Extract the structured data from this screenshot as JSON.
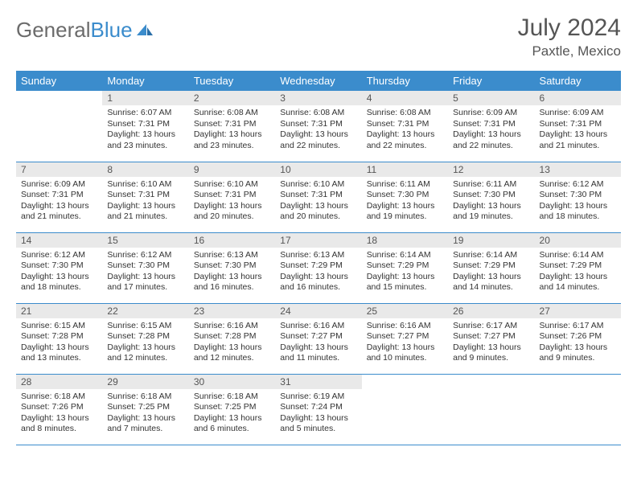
{
  "brand": {
    "part1": "General",
    "part2": "Blue"
  },
  "title": "July 2024",
  "location": "Paxtle, Mexico",
  "colors": {
    "header_bg": "#3b8ccc",
    "header_fg": "#ffffff",
    "daynum_bg": "#e9e9e9",
    "text": "#333333",
    "row_border": "#3b8ccc"
  },
  "fonts": {
    "title_size": 30,
    "location_size": 17,
    "dayhead_size": 13,
    "cell_size": 10.5
  },
  "day_labels": [
    "Sunday",
    "Monday",
    "Tuesday",
    "Wednesday",
    "Thursday",
    "Friday",
    "Saturday"
  ],
  "weeks": [
    [
      {
        "n": "",
        "sunrise": "",
        "sunset": "",
        "daylight": ""
      },
      {
        "n": "1",
        "sunrise": "Sunrise: 6:07 AM",
        "sunset": "Sunset: 7:31 PM",
        "daylight": "Daylight: 13 hours and 23 minutes."
      },
      {
        "n": "2",
        "sunrise": "Sunrise: 6:08 AM",
        "sunset": "Sunset: 7:31 PM",
        "daylight": "Daylight: 13 hours and 23 minutes."
      },
      {
        "n": "3",
        "sunrise": "Sunrise: 6:08 AM",
        "sunset": "Sunset: 7:31 PM",
        "daylight": "Daylight: 13 hours and 22 minutes."
      },
      {
        "n": "4",
        "sunrise": "Sunrise: 6:08 AM",
        "sunset": "Sunset: 7:31 PM",
        "daylight": "Daylight: 13 hours and 22 minutes."
      },
      {
        "n": "5",
        "sunrise": "Sunrise: 6:09 AM",
        "sunset": "Sunset: 7:31 PM",
        "daylight": "Daylight: 13 hours and 22 minutes."
      },
      {
        "n": "6",
        "sunrise": "Sunrise: 6:09 AM",
        "sunset": "Sunset: 7:31 PM",
        "daylight": "Daylight: 13 hours and 21 minutes."
      }
    ],
    [
      {
        "n": "7",
        "sunrise": "Sunrise: 6:09 AM",
        "sunset": "Sunset: 7:31 PM",
        "daylight": "Daylight: 13 hours and 21 minutes."
      },
      {
        "n": "8",
        "sunrise": "Sunrise: 6:10 AM",
        "sunset": "Sunset: 7:31 PM",
        "daylight": "Daylight: 13 hours and 21 minutes."
      },
      {
        "n": "9",
        "sunrise": "Sunrise: 6:10 AM",
        "sunset": "Sunset: 7:31 PM",
        "daylight": "Daylight: 13 hours and 20 minutes."
      },
      {
        "n": "10",
        "sunrise": "Sunrise: 6:10 AM",
        "sunset": "Sunset: 7:31 PM",
        "daylight": "Daylight: 13 hours and 20 minutes."
      },
      {
        "n": "11",
        "sunrise": "Sunrise: 6:11 AM",
        "sunset": "Sunset: 7:30 PM",
        "daylight": "Daylight: 13 hours and 19 minutes."
      },
      {
        "n": "12",
        "sunrise": "Sunrise: 6:11 AM",
        "sunset": "Sunset: 7:30 PM",
        "daylight": "Daylight: 13 hours and 19 minutes."
      },
      {
        "n": "13",
        "sunrise": "Sunrise: 6:12 AM",
        "sunset": "Sunset: 7:30 PM",
        "daylight": "Daylight: 13 hours and 18 minutes."
      }
    ],
    [
      {
        "n": "14",
        "sunrise": "Sunrise: 6:12 AM",
        "sunset": "Sunset: 7:30 PM",
        "daylight": "Daylight: 13 hours and 18 minutes."
      },
      {
        "n": "15",
        "sunrise": "Sunrise: 6:12 AM",
        "sunset": "Sunset: 7:30 PM",
        "daylight": "Daylight: 13 hours and 17 minutes."
      },
      {
        "n": "16",
        "sunrise": "Sunrise: 6:13 AM",
        "sunset": "Sunset: 7:30 PM",
        "daylight": "Daylight: 13 hours and 16 minutes."
      },
      {
        "n": "17",
        "sunrise": "Sunrise: 6:13 AM",
        "sunset": "Sunset: 7:29 PM",
        "daylight": "Daylight: 13 hours and 16 minutes."
      },
      {
        "n": "18",
        "sunrise": "Sunrise: 6:14 AM",
        "sunset": "Sunset: 7:29 PM",
        "daylight": "Daylight: 13 hours and 15 minutes."
      },
      {
        "n": "19",
        "sunrise": "Sunrise: 6:14 AM",
        "sunset": "Sunset: 7:29 PM",
        "daylight": "Daylight: 13 hours and 14 minutes."
      },
      {
        "n": "20",
        "sunrise": "Sunrise: 6:14 AM",
        "sunset": "Sunset: 7:29 PM",
        "daylight": "Daylight: 13 hours and 14 minutes."
      }
    ],
    [
      {
        "n": "21",
        "sunrise": "Sunrise: 6:15 AM",
        "sunset": "Sunset: 7:28 PM",
        "daylight": "Daylight: 13 hours and 13 minutes."
      },
      {
        "n": "22",
        "sunrise": "Sunrise: 6:15 AM",
        "sunset": "Sunset: 7:28 PM",
        "daylight": "Daylight: 13 hours and 12 minutes."
      },
      {
        "n": "23",
        "sunrise": "Sunrise: 6:16 AM",
        "sunset": "Sunset: 7:28 PM",
        "daylight": "Daylight: 13 hours and 12 minutes."
      },
      {
        "n": "24",
        "sunrise": "Sunrise: 6:16 AM",
        "sunset": "Sunset: 7:27 PM",
        "daylight": "Daylight: 13 hours and 11 minutes."
      },
      {
        "n": "25",
        "sunrise": "Sunrise: 6:16 AM",
        "sunset": "Sunset: 7:27 PM",
        "daylight": "Daylight: 13 hours and 10 minutes."
      },
      {
        "n": "26",
        "sunrise": "Sunrise: 6:17 AM",
        "sunset": "Sunset: 7:27 PM",
        "daylight": "Daylight: 13 hours and 9 minutes."
      },
      {
        "n": "27",
        "sunrise": "Sunrise: 6:17 AM",
        "sunset": "Sunset: 7:26 PM",
        "daylight": "Daylight: 13 hours and 9 minutes."
      }
    ],
    [
      {
        "n": "28",
        "sunrise": "Sunrise: 6:18 AM",
        "sunset": "Sunset: 7:26 PM",
        "daylight": "Daylight: 13 hours and 8 minutes."
      },
      {
        "n": "29",
        "sunrise": "Sunrise: 6:18 AM",
        "sunset": "Sunset: 7:25 PM",
        "daylight": "Daylight: 13 hours and 7 minutes."
      },
      {
        "n": "30",
        "sunrise": "Sunrise: 6:18 AM",
        "sunset": "Sunset: 7:25 PM",
        "daylight": "Daylight: 13 hours and 6 minutes."
      },
      {
        "n": "31",
        "sunrise": "Sunrise: 6:19 AM",
        "sunset": "Sunset: 7:24 PM",
        "daylight": "Daylight: 13 hours and 5 minutes."
      },
      {
        "n": "",
        "sunrise": "",
        "sunset": "",
        "daylight": ""
      },
      {
        "n": "",
        "sunrise": "",
        "sunset": "",
        "daylight": ""
      },
      {
        "n": "",
        "sunrise": "",
        "sunset": "",
        "daylight": ""
      }
    ]
  ]
}
